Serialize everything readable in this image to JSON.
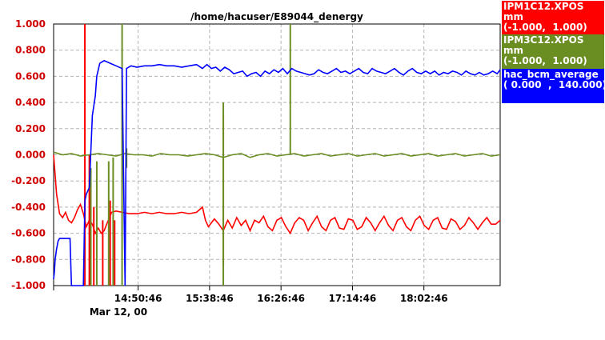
{
  "chart_data": {
    "type": "line",
    "title": "/home/hacuser/E89044_denergy",
    "ylim": [
      -1.0,
      1.0
    ],
    "y_ticks": [
      "1.000",
      "0.800",
      "0.600",
      "0.400",
      "0.200",
      "0.000",
      "-0.200",
      "-0.400",
      "-0.600",
      "-0.800",
      "-1.000"
    ],
    "x_range_minutes": [
      834,
      1134
    ],
    "x_ticks": [
      {
        "t": 890.77,
        "label": "14:50:46"
      },
      {
        "t": 938.77,
        "label": "15:38:46"
      },
      {
        "t": 986.77,
        "label": "16:26:46"
      },
      {
        "t": 1034.77,
        "label": "17:14:46"
      },
      {
        "t": 1082.77,
        "label": "18:02:46"
      }
    ],
    "date_label": "Mar 12, 00",
    "grid": true,
    "legend_position": "right",
    "series": [
      {
        "name": "IPM1C12.XPOS",
        "unit": "mm",
        "range": "(-1.000,  1.000)",
        "color": "#ff0000",
        "points": [
          [
            834,
            0.0
          ],
          [
            836,
            -0.3
          ],
          [
            838,
            -0.45
          ],
          [
            840,
            -0.48
          ],
          [
            842,
            -0.44
          ],
          [
            844,
            -0.5
          ],
          [
            846,
            -0.52
          ],
          [
            848,
            -0.48
          ],
          [
            850,
            -0.42
          ],
          [
            852,
            -0.38
          ],
          [
            854,
            -0.45
          ],
          [
            856,
            -0.55
          ],
          [
            858,
            -0.5
          ],
          [
            860,
            -0.53
          ],
          [
            862,
            -0.6
          ],
          [
            864,
            -0.56
          ],
          [
            866,
            -0.6
          ],
          [
            868,
            -0.58
          ],
          [
            870,
            -0.52
          ],
          [
            873,
            -0.44
          ],
          [
            876,
            -0.43
          ],
          [
            880,
            -0.44
          ],
          [
            885,
            -0.45
          ],
          [
            890,
            -0.45
          ],
          [
            895,
            -0.44
          ],
          [
            900,
            -0.45
          ],
          [
            905,
            -0.44
          ],
          [
            910,
            -0.45
          ],
          [
            915,
            -0.45
          ],
          [
            920,
            -0.44
          ],
          [
            925,
            -0.45
          ],
          [
            930,
            -0.44
          ],
          [
            934,
            -0.4
          ],
          [
            936,
            -0.5
          ],
          [
            938,
            -0.55
          ],
          [
            940,
            -0.52
          ],
          [
            942,
            -0.49
          ],
          [
            945,
            -0.53
          ],
          [
            948,
            -0.58
          ],
          [
            951,
            -0.5
          ],
          [
            954,
            -0.56
          ],
          [
            957,
            -0.48
          ],
          [
            960,
            -0.54
          ],
          [
            963,
            -0.5
          ],
          [
            966,
            -0.58
          ],
          [
            969,
            -0.5
          ],
          [
            972,
            -0.52
          ],
          [
            975,
            -0.47
          ],
          [
            978,
            -0.55
          ],
          [
            981,
            -0.58
          ],
          [
            984,
            -0.5
          ],
          [
            987,
            -0.48
          ],
          [
            990,
            -0.55
          ],
          [
            993,
            -0.6
          ],
          [
            996,
            -0.52
          ],
          [
            999,
            -0.48
          ],
          [
            1002,
            -0.5
          ],
          [
            1005,
            -0.58
          ],
          [
            1008,
            -0.52
          ],
          [
            1011,
            -0.47
          ],
          [
            1014,
            -0.55
          ],
          [
            1017,
            -0.58
          ],
          [
            1020,
            -0.5
          ],
          [
            1023,
            -0.48
          ],
          [
            1026,
            -0.56
          ],
          [
            1029,
            -0.57
          ],
          [
            1032,
            -0.49
          ],
          [
            1035,
            -0.5
          ],
          [
            1038,
            -0.57
          ],
          [
            1041,
            -0.55
          ],
          [
            1044,
            -0.48
          ],
          [
            1047,
            -0.52
          ],
          [
            1050,
            -0.58
          ],
          [
            1053,
            -0.52
          ],
          [
            1056,
            -0.47
          ],
          [
            1059,
            -0.54
          ],
          [
            1062,
            -0.58
          ],
          [
            1065,
            -0.5
          ],
          [
            1068,
            -0.48
          ],
          [
            1071,
            -0.55
          ],
          [
            1074,
            -0.58
          ],
          [
            1077,
            -0.5
          ],
          [
            1080,
            -0.47
          ],
          [
            1083,
            -0.54
          ],
          [
            1086,
            -0.57
          ],
          [
            1089,
            -0.5
          ],
          [
            1092,
            -0.48
          ],
          [
            1095,
            -0.56
          ],
          [
            1098,
            -0.57
          ],
          [
            1101,
            -0.49
          ],
          [
            1104,
            -0.51
          ],
          [
            1107,
            -0.57
          ],
          [
            1110,
            -0.54
          ],
          [
            1113,
            -0.48
          ],
          [
            1116,
            -0.52
          ],
          [
            1119,
            -0.57
          ],
          [
            1122,
            -0.52
          ],
          [
            1125,
            -0.48
          ],
          [
            1128,
            -0.53
          ],
          [
            1131,
            -0.53
          ],
          [
            1134,
            -0.5
          ]
        ],
        "spikes": [
          [
            855,
            1.0,
            -1.0
          ],
          [
            858,
            0.0,
            -1.0
          ],
          [
            861,
            -0.4,
            -1.0
          ],
          [
            867,
            -0.5,
            -1.0
          ],
          [
            872,
            -0.35,
            -1.0
          ],
          [
            875,
            -0.5,
            -1.0
          ],
          [
            948,
            0.3,
            -0.85
          ]
        ]
      },
      {
        "name": "IPM3C12.XPOS",
        "unit": "mm",
        "range": "(-1.000,  1.000)",
        "color": "#6b8e23",
        "points": [
          [
            834,
            0.02
          ],
          [
            840,
            0.0
          ],
          [
            846,
            0.01
          ],
          [
            852,
            -0.01
          ],
          [
            858,
            0.0
          ],
          [
            864,
            0.01
          ],
          [
            870,
            0.0
          ],
          [
            876,
            -0.01
          ],
          [
            882,
            0.01
          ],
          [
            888,
            0.0
          ],
          [
            894,
            0.0
          ],
          [
            900,
            -0.01
          ],
          [
            906,
            0.01
          ],
          [
            912,
            0.0
          ],
          [
            918,
            0.0
          ],
          [
            924,
            -0.01
          ],
          [
            930,
            0.0
          ],
          [
            936,
            0.01
          ],
          [
            942,
            0.0
          ],
          [
            948,
            -0.02
          ],
          [
            954,
            0.0
          ],
          [
            960,
            0.01
          ],
          [
            966,
            -0.02
          ],
          [
            972,
            0.0
          ],
          [
            978,
            0.01
          ],
          [
            984,
            -0.01
          ],
          [
            990,
            0.0
          ],
          [
            996,
            0.01
          ],
          [
            1002,
            -0.01
          ],
          [
            1008,
            0.0
          ],
          [
            1014,
            0.01
          ],
          [
            1020,
            -0.01
          ],
          [
            1026,
            0.0
          ],
          [
            1032,
            0.01
          ],
          [
            1038,
            -0.01
          ],
          [
            1044,
            0.0
          ],
          [
            1050,
            0.01
          ],
          [
            1056,
            -0.01
          ],
          [
            1062,
            0.0
          ],
          [
            1068,
            0.01
          ],
          [
            1074,
            -0.01
          ],
          [
            1080,
            0.0
          ],
          [
            1086,
            0.01
          ],
          [
            1092,
            -0.01
          ],
          [
            1098,
            0.0
          ],
          [
            1104,
            0.01
          ],
          [
            1110,
            -0.01
          ],
          [
            1116,
            0.0
          ],
          [
            1122,
            0.01
          ],
          [
            1128,
            -0.01
          ],
          [
            1134,
            0.0
          ]
        ],
        "spikes": [
          [
            859,
            -0.1,
            -1.0
          ],
          [
            863,
            -0.05,
            -1.0
          ],
          [
            871,
            -0.05,
            -1.0
          ],
          [
            874,
            -0.02,
            -1.0
          ],
          [
            880,
            1.0,
            -1.0
          ],
          [
            883,
            0.05,
            -0.1
          ],
          [
            948,
            0.4,
            -1.0
          ],
          [
            993,
            1.0,
            0.0
          ]
        ]
      },
      {
        "name": "hac_bcm_average",
        "unit": "",
        "range": "( 0.000  ,  140.000)",
        "color": "#0000ff",
        "points": [
          [
            834,
            -0.95
          ],
          [
            834.5,
            -0.9
          ],
          [
            835,
            -0.8
          ],
          [
            836,
            -0.72
          ],
          [
            837,
            -0.66
          ],
          [
            838,
            -0.64
          ],
          [
            840,
            -0.64
          ],
          [
            842,
            -0.64
          ],
          [
            845,
            -0.64
          ],
          [
            846,
            -1.0
          ],
          [
            850,
            -1.0
          ],
          [
            854,
            -1.0
          ],
          [
            855,
            -0.35
          ],
          [
            856,
            -0.3
          ],
          [
            858,
            -0.25
          ],
          [
            860,
            0.3
          ],
          [
            862,
            0.45
          ],
          [
            863,
            0.6
          ],
          [
            865,
            0.7
          ],
          [
            868,
            0.72
          ],
          [
            872,
            0.7
          ],
          [
            876,
            0.68
          ],
          [
            880,
            0.66
          ],
          [
            882,
            -1.0
          ],
          [
            883,
            0.66
          ],
          [
            886,
            0.68
          ],
          [
            890,
            0.67
          ],
          [
            895,
            0.68
          ],
          [
            900,
            0.68
          ],
          [
            905,
            0.69
          ],
          [
            910,
            0.68
          ],
          [
            915,
            0.68
          ],
          [
            920,
            0.67
          ],
          [
            925,
            0.68
          ],
          [
            930,
            0.69
          ],
          [
            934,
            0.66
          ],
          [
            937,
            0.69
          ],
          [
            940,
            0.66
          ],
          [
            943,
            0.67
          ],
          [
            946,
            0.64
          ],
          [
            949,
            0.67
          ],
          [
            952,
            0.65
          ],
          [
            955,
            0.62
          ],
          [
            958,
            0.63
          ],
          [
            961,
            0.64
          ],
          [
            964,
            0.6
          ],
          [
            967,
            0.62
          ],
          [
            970,
            0.63
          ],
          [
            973,
            0.6
          ],
          [
            976,
            0.64
          ],
          [
            979,
            0.62
          ],
          [
            982,
            0.65
          ],
          [
            985,
            0.63
          ],
          [
            988,
            0.66
          ],
          [
            991,
            0.62
          ],
          [
            994,
            0.66
          ],
          [
            997,
            0.64
          ],
          [
            1000,
            0.63
          ],
          [
            1003,
            0.62
          ],
          [
            1006,
            0.61
          ],
          [
            1009,
            0.62
          ],
          [
            1012,
            0.65
          ],
          [
            1015,
            0.63
          ],
          [
            1018,
            0.62
          ],
          [
            1021,
            0.64
          ],
          [
            1024,
            0.66
          ],
          [
            1027,
            0.63
          ],
          [
            1030,
            0.64
          ],
          [
            1033,
            0.62
          ],
          [
            1036,
            0.64
          ],
          [
            1039,
            0.66
          ],
          [
            1042,
            0.63
          ],
          [
            1045,
            0.62
          ],
          [
            1048,
            0.66
          ],
          [
            1051,
            0.64
          ],
          [
            1054,
            0.63
          ],
          [
            1057,
            0.62
          ],
          [
            1060,
            0.64
          ],
          [
            1063,
            0.66
          ],
          [
            1066,
            0.63
          ],
          [
            1069,
            0.61
          ],
          [
            1072,
            0.64
          ],
          [
            1075,
            0.66
          ],
          [
            1078,
            0.63
          ],
          [
            1081,
            0.62
          ],
          [
            1084,
            0.64
          ],
          [
            1087,
            0.62
          ],
          [
            1090,
            0.64
          ],
          [
            1093,
            0.61
          ],
          [
            1096,
            0.63
          ],
          [
            1099,
            0.62
          ],
          [
            1102,
            0.64
          ],
          [
            1105,
            0.63
          ],
          [
            1108,
            0.61
          ],
          [
            1111,
            0.64
          ],
          [
            1114,
            0.62
          ],
          [
            1117,
            0.61
          ],
          [
            1120,
            0.63
          ],
          [
            1123,
            0.61
          ],
          [
            1126,
            0.62
          ],
          [
            1129,
            0.64
          ],
          [
            1132,
            0.62
          ],
          [
            1134,
            0.65
          ]
        ],
        "spikes": []
      }
    ]
  }
}
